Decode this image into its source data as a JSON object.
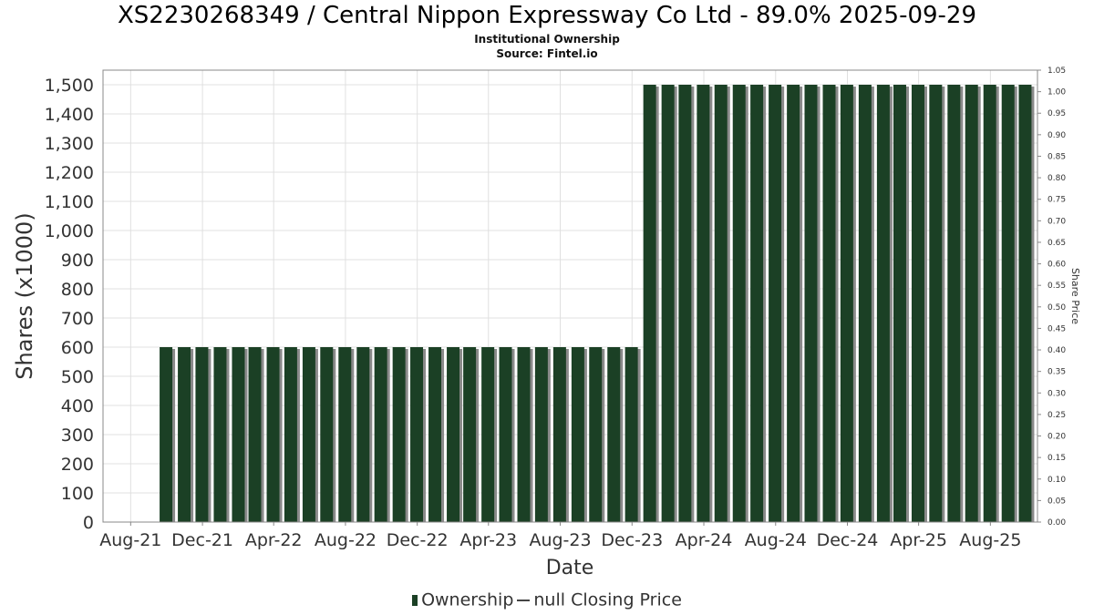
{
  "header": {
    "title": "XS2230268349 / Central Nippon Expressway Co Ltd - 89.0% 2025-09-29",
    "subtitle": "Institutional Ownership",
    "source": "Source: Fintel.io"
  },
  "legend": {
    "ownership": "Ownership",
    "price": "null Closing Price"
  },
  "colors": {
    "bar": "#1b4025",
    "bar_shadow": "#8a8a8a",
    "grid": "#e0e0e0",
    "frame": "#888888"
  },
  "chart_data": {
    "type": "bar",
    "title": "XS2230268349 / Central Nippon Expressway Co Ltd - 89.0% 2025-09-29",
    "subtitle": "Institutional Ownership",
    "xlabel": "Date",
    "ylabel": "Shares (x1000)",
    "y2label": "Share Price",
    "ylim": [
      0,
      1550
    ],
    "y2lim": [
      0,
      1.05
    ],
    "xlim": [
      "2021-06-15",
      "2025-10-20"
    ],
    "grid": true,
    "legend_position": "bottom",
    "y_ticks": [
      0,
      100,
      200,
      300,
      400,
      500,
      600,
      700,
      800,
      900,
      1000,
      1100,
      1200,
      1300,
      1400,
      1500
    ],
    "y_tick_labels": [
      "0",
      "100",
      "200",
      "300",
      "400",
      "500",
      "600",
      "700",
      "800",
      "900",
      "1,000",
      "1,100",
      "1,200",
      "1,300",
      "1,400",
      "1,500"
    ],
    "y2_ticks": [
      0,
      0.05,
      0.1,
      0.15,
      0.2,
      0.25,
      0.3,
      0.35,
      0.4,
      0.45,
      0.5,
      0.55,
      0.6,
      0.65,
      0.7,
      0.75,
      0.8,
      0.85,
      0.9,
      0.95,
      1.0,
      1.05
    ],
    "y2_tick_labels": [
      "0.00",
      "0.05",
      "0.10",
      "0.15",
      "0.20",
      "0.25",
      "0.30",
      "0.35",
      "0.40",
      "0.45",
      "0.50",
      "0.55",
      "0.60",
      "0.65",
      "0.70",
      "0.75",
      "0.80",
      "0.85",
      "0.90",
      "0.95",
      "1.00",
      "1.05"
    ],
    "x_ticks": [
      {
        "date": "2021-08-01",
        "label": "Aug-21"
      },
      {
        "date": "2021-12-01",
        "label": "Dec-21"
      },
      {
        "date": "2022-04-01",
        "label": "Apr-22"
      },
      {
        "date": "2022-08-01",
        "label": "Aug-22"
      },
      {
        "date": "2022-12-01",
        "label": "Dec-22"
      },
      {
        "date": "2023-04-01",
        "label": "Apr-23"
      },
      {
        "date": "2023-08-01",
        "label": "Aug-23"
      },
      {
        "date": "2023-12-01",
        "label": "Dec-23"
      },
      {
        "date": "2024-04-01",
        "label": "Apr-24"
      },
      {
        "date": "2024-08-01",
        "label": "Aug-24"
      },
      {
        "date": "2024-12-01",
        "label": "Dec-24"
      },
      {
        "date": "2025-04-01",
        "label": "Apr-25"
      },
      {
        "date": "2025-08-01",
        "label": "Aug-25"
      }
    ],
    "series": [
      {
        "name": "Ownership",
        "x": [
          "2021-09-30",
          "2021-10-31",
          "2021-11-30",
          "2021-12-31",
          "2022-01-31",
          "2022-02-28",
          "2022-03-31",
          "2022-04-30",
          "2022-05-31",
          "2022-06-30",
          "2022-07-31",
          "2022-08-31",
          "2022-09-30",
          "2022-10-31",
          "2022-11-30",
          "2022-12-31",
          "2023-01-31",
          "2023-02-28",
          "2023-03-31",
          "2023-04-30",
          "2023-05-31",
          "2023-06-30",
          "2023-07-31",
          "2023-08-31",
          "2023-09-30",
          "2023-10-31",
          "2023-11-30",
          "2023-12-31",
          "2024-01-31",
          "2024-02-29",
          "2024-03-31",
          "2024-04-30",
          "2024-05-31",
          "2024-06-30",
          "2024-07-31",
          "2024-08-31",
          "2024-09-30",
          "2024-10-31",
          "2024-11-30",
          "2024-12-31",
          "2025-01-31",
          "2025-02-28",
          "2025-03-31",
          "2025-04-30",
          "2025-05-31",
          "2025-06-30",
          "2025-07-31",
          "2025-08-31",
          "2025-09-29"
        ],
        "values": [
          600,
          600,
          600,
          600,
          600,
          600,
          600,
          600,
          600,
          600,
          600,
          600,
          600,
          600,
          600,
          600,
          600,
          600,
          600,
          600,
          600,
          600,
          600,
          600,
          600,
          600,
          600,
          1500,
          1500,
          1500,
          1500,
          1500,
          1500,
          1500,
          1500,
          1500,
          1500,
          1500,
          1500,
          1500,
          1500,
          1500,
          1500,
          1500,
          1500,
          1500,
          1500,
          1500,
          1500
        ]
      },
      {
        "name": "null Closing Price",
        "x": [],
        "values": []
      }
    ]
  }
}
